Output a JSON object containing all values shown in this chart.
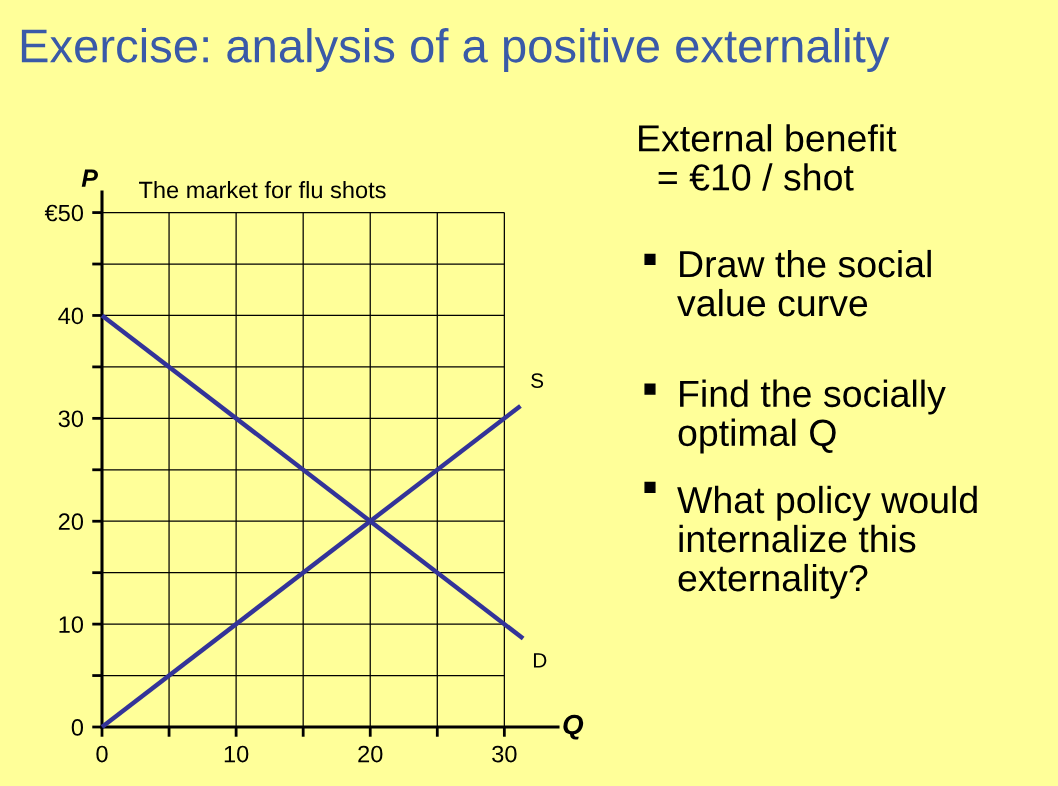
{
  "chart_data": {
    "type": "line",
    "title": "Exercise: analysis of a positive externality",
    "subtitle": "The market for flu shots",
    "xlabel": "Q",
    "ylabel": "P",
    "series": [
      {
        "name": "S",
        "color": "#333399",
        "x": [
          0,
          31.2
        ],
        "values": [
          0,
          31.2
        ]
      },
      {
        "name": "D",
        "color": "#333399",
        "x": [
          0,
          31.4
        ],
        "values": [
          40,
          8.6
        ]
      }
    ],
    "xlim": [
      0,
      34
    ],
    "ylim": [
      0,
      52
    ],
    "xticks": [
      0,
      {
        "value": 5,
        "label": null
      },
      10,
      {
        "value": 15,
        "label": null
      },
      20,
      {
        "value": 25,
        "label": null
      },
      30
    ],
    "yticks": [
      0,
      {
        "value": 5,
        "label": null
      },
      10,
      {
        "value": 15,
        "label": null
      },
      20,
      {
        "value": 25,
        "label": null
      },
      30,
      {
        "value": 35,
        "label": null
      },
      40,
      {
        "value": 45,
        "label": null
      },
      {
        "value": 50,
        "label": "€50"
      }
    ],
    "grid": true,
    "legend": false,
    "marker": "none",
    "line_style": "solid",
    "annotations": [
      "External benefit\n  = €10 / shot",
      "Draw the social\nvalue curve",
      "Find the socially\noptimal Q",
      "What policy would\ninternalize this\nexternality?"
    ]
  }
}
